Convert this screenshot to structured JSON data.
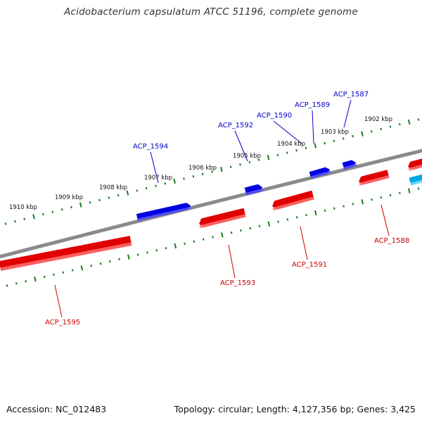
{
  "title": "Acidobacterium capsulatum ATCC 51196, complete genome",
  "footer": {
    "accession": "Accession: NC_012483",
    "summary": "Topology: circular; Length: 4,127,356 bp; Genes: 3,425"
  },
  "colors": {
    "backbone": "#8a8a8a",
    "forward_gene": "#0000e0",
    "reverse_gene": "#e00000",
    "other_gene": "#00a8e8",
    "forward_label": "#0000cc",
    "reverse_label": "#cc0000",
    "tick": "#1a7a1a"
  },
  "scale_labels": [
    "1910 kbp",
    "1909 kbp",
    "1908 kbp",
    "1907 kbp",
    "1906 kbp",
    "1905 kbp",
    "1904 kbp",
    "1903 kbp",
    "1902 kbp"
  ],
  "gene_labels": {
    "forward": [
      "ACP_1594",
      "ACP_1592",
      "ACP_1590",
      "ACP_1589",
      "ACP_1587"
    ],
    "reverse": [
      "ACP_1595",
      "ACP_1593",
      "ACP_1591",
      "ACP_1588"
    ]
  }
}
